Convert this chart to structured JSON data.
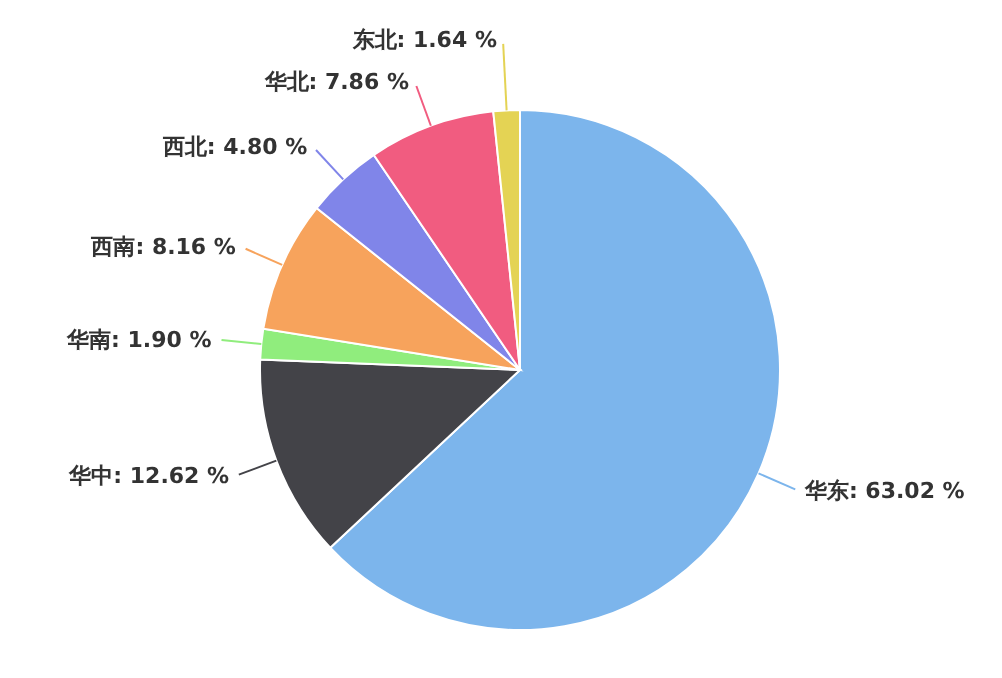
{
  "chart_data": {
    "type": "pie",
    "categories": [
      "华东",
      "华中",
      "华南",
      "西南",
      "西北",
      "华北",
      "东北"
    ],
    "values": [
      63.02,
      12.62,
      1.9,
      8.16,
      4.8,
      7.86,
      1.64
    ],
    "value_labels": [
      "63.02 %",
      "12.62 %",
      "1.90 %",
      "8.16 %",
      "4.80 %",
      "7.86 %",
      "1.64 %"
    ],
    "colors": [
      "#7cb5ec",
      "#434348",
      "#90ed7d",
      "#f7a35c",
      "#8085e9",
      "#f15c80",
      "#e4d354"
    ],
    "legend": false
  }
}
